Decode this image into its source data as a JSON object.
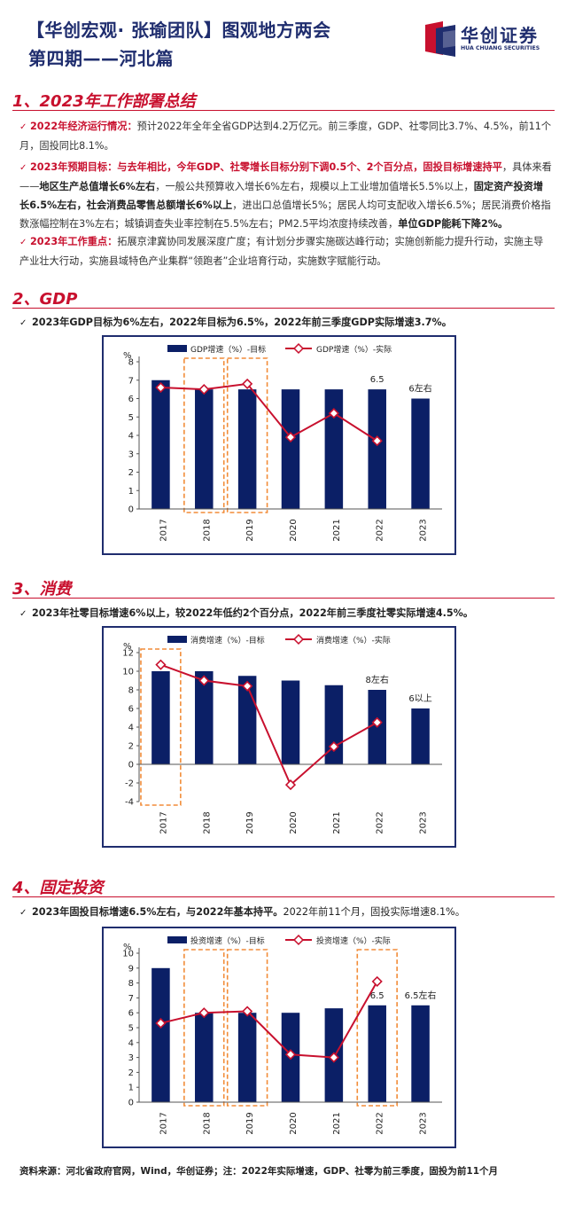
{
  "header": {
    "title_line1": "【华创宏观· 张瑜团队】图观地方两会",
    "title_line2": "第四期——河北篇",
    "logo_cn": "华创证券",
    "logo_en": "HUA CHUANG SECURITIES"
  },
  "sections": {
    "s1_title": "1、2023年工作部署总结",
    "s1_items": [
      {
        "lead": "2022年经济运行情况：",
        "text": "预计2022年全年全省GDP达到4.2万亿元。前三季度，GDP、社零同比3.7%、4.5%，前11个月，固投同比8.1%。"
      },
      {
        "lead": "2023年预期目标：与去年相比，今年GDP、社零增长目标分别下调0.5个、2个百分点，固投目标增速持平",
        "text_parts": [
          {
            "t": "，具体来看——",
            "b": false
          },
          {
            "t": "地区生产总值增长6%左右",
            "b": true
          },
          {
            "t": "，一般公共预算收入增长6%左右，规模以上工业增加值增长5.5%以上，",
            "b": false
          },
          {
            "t": "固定资产投资增长6.5%左右，社会消费品零售总额增长6%以上",
            "b": true
          },
          {
            "t": "，进出口总值增长5%；居民人均可支配收入增长6.5%；居民消费价格指数涨幅控制在3%左右；城镇调查失业率控制在5.5%左右；PM2.5平均浓度持续改善，",
            "b": false
          },
          {
            "t": "单位GDP能耗下降2%。",
            "b": true
          }
        ]
      },
      {
        "lead": "2023年工作重点：",
        "text": "拓展京津冀协同发展深度广度；有计划分步骤实施碳达峰行动；实施创新能力提升行动，实施主导产业壮大行动，实施县域特色产业集群“领跑者”企业培育行动，实施数字赋能行动。"
      }
    ],
    "s2_title": "2、GDP",
    "s2_sub": "2023年GDP目标为6%左右，2022年目标为6.5%，2022年前三季度GDP实际增速3.7%。",
    "s3_title": "3、消费",
    "s3_sub": "2023年社零目标增速6%以上，较2022年低约2个百分点，2022年前三季度社零实际增速4.5%。",
    "s4_title": "4、固定投资",
    "s4_sub_bold": "2023年固投目标增速6.5%左右，与2022年基本持平。",
    "s4_sub_rest": "2022年前11个月，固投实际增速8.1%。"
  },
  "footer": "资料来源：河北省政府官网，Wind，华创证券；注：2022年实际增速，GDP、社零为前三季度，固投为前11个月",
  "colors": {
    "bar": "#0b1f66",
    "line": "#c8102e",
    "highlight": "#f28c38",
    "brand": "#1f2d6e"
  },
  "chart_data": [
    {
      "type": "bar",
      "ylabel": "%",
      "ylim": [
        0,
        8
      ],
      "yticks": [
        0,
        1,
        2,
        3,
        4,
        5,
        6,
        7,
        8
      ],
      "categories": [
        "2017",
        "2018",
        "2019",
        "2020",
        "2021",
        "2022",
        "2023"
      ],
      "series": [
        {
          "name": "GDP增速（%）-目标",
          "type": "bar",
          "values": [
            7.0,
            6.5,
            6.5,
            6.5,
            6.5,
            6.5,
            6.0
          ]
        },
        {
          "name": "GDP增速（%）-实际",
          "type": "line",
          "values": [
            6.6,
            6.5,
            6.8,
            3.9,
            5.2,
            3.7,
            null
          ]
        }
      ],
      "annotations": [
        {
          "category": "2022",
          "text": "6.5"
        },
        {
          "category": "2023",
          "text": "6左右"
        }
      ],
      "highlighted_categories": [
        "2018",
        "2019"
      ]
    },
    {
      "type": "bar",
      "ylabel": "%",
      "ylim": [
        -4,
        12
      ],
      "yticks": [
        -4,
        -2,
        0,
        2,
        4,
        6,
        8,
        10,
        12
      ],
      "categories": [
        "2017",
        "2018",
        "2019",
        "2020",
        "2021",
        "2022",
        "2023"
      ],
      "series": [
        {
          "name": "消费增速（%）-目标",
          "type": "bar",
          "values": [
            10.0,
            10.0,
            9.5,
            9.0,
            8.5,
            8.0,
            6.0
          ]
        },
        {
          "name": "消费增速（%）-实际",
          "type": "line",
          "values": [
            10.7,
            9.0,
            8.4,
            -2.2,
            1.9,
            4.5,
            null
          ]
        }
      ],
      "annotations": [
        {
          "category": "2022",
          "text": "8左右"
        },
        {
          "category": "2023",
          "text": "6以上"
        }
      ],
      "highlighted_categories": [
        "2017"
      ]
    },
    {
      "type": "bar",
      "ylabel": "%",
      "ylim": [
        0,
        10
      ],
      "yticks": [
        0,
        1,
        2,
        3,
        4,
        5,
        6,
        7,
        8,
        9,
        10
      ],
      "categories": [
        "2017",
        "2018",
        "2019",
        "2020",
        "2021",
        "2022",
        "2023"
      ],
      "series": [
        {
          "name": "投资增速（%）-目标",
          "type": "bar",
          "values": [
            9.0,
            6.0,
            6.0,
            6.0,
            6.3,
            6.5,
            6.5
          ]
        },
        {
          "name": "投资增速（%）-实际",
          "type": "line",
          "values": [
            5.3,
            6.0,
            6.1,
            3.2,
            3.0,
            8.1,
            null
          ]
        }
      ],
      "annotations": [
        {
          "category": "2022",
          "text": "6.5"
        },
        {
          "category": "2023",
          "text": "6.5左右"
        }
      ],
      "highlighted_categories": [
        "2018",
        "2019",
        "2022"
      ]
    }
  ]
}
